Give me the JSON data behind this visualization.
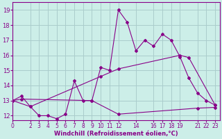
{
  "bg_color": "#cceee8",
  "grid_color": "#aacccc",
  "line_color": "#880088",
  "xlabel": "Windchill (Refroidissement éolien,°C)",
  "xlim": [
    0,
    23.5
  ],
  "ylim": [
    11.7,
    19.5
  ],
  "yticks": [
    12,
    13,
    14,
    15,
    16,
    17,
    18,
    19
  ],
  "xticks": [
    0,
    2,
    3,
    4,
    5,
    6,
    7,
    8,
    9,
    10,
    11,
    12,
    14,
    16,
    17,
    18,
    19,
    21,
    22,
    23
  ],
  "s1_x": [
    0,
    1,
    2,
    3,
    4,
    5,
    6,
    7,
    8,
    9,
    10,
    11,
    12,
    13,
    14,
    15,
    16,
    17,
    18,
    19,
    20,
    21,
    22,
    23
  ],
  "s1_y": [
    13.0,
    13.3,
    12.6,
    12.0,
    12.0,
    11.8,
    12.1,
    14.3,
    13.0,
    13.0,
    15.2,
    15.0,
    19.0,
    18.2,
    16.3,
    17.0,
    16.6,
    17.4,
    17.0,
    15.9,
    14.5,
    13.5,
    13.0,
    12.7
  ],
  "s2_x": [
    0,
    2,
    10,
    12,
    19,
    20,
    23
  ],
  "s2_y": [
    13.0,
    12.6,
    14.6,
    15.1,
    16.0,
    15.85,
    12.7
  ],
  "s3_x": [
    0,
    1,
    9,
    12,
    21,
    23
  ],
  "s3_y": [
    13.0,
    13.1,
    13.0,
    12.1,
    12.5,
    12.55
  ],
  "figsize": [
    3.2,
    2.0
  ],
  "dpi": 100
}
